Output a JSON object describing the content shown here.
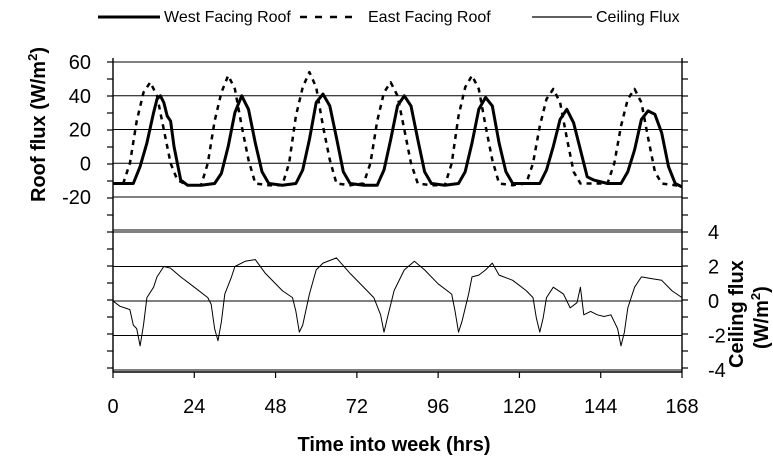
{
  "chart_data": {
    "type": "line",
    "xlabel": "Time into week (hrs)",
    "x_ticks": [
      0,
      24,
      48,
      72,
      96,
      120,
      144,
      168
    ],
    "xlim": [
      0,
      168
    ],
    "grid": true,
    "legend_position": "top",
    "top_panel": {
      "ylabel_main": "Roof flux (W/m",
      "ylabel_sup": "2",
      "ylabel_close": ")",
      "y_ticks": [
        60,
        40,
        20,
        0,
        -20
      ],
      "ylim": [
        -20,
        60
      ],
      "series": [
        {
          "name": "West Facing Roof",
          "style": "solid-thick",
          "points": [
            [
              0,
              -12
            ],
            [
              4,
              -12
            ],
            [
              6,
              -12
            ],
            [
              8,
              -2
            ],
            [
              10,
              12
            ],
            [
              12,
              30
            ],
            [
              13,
              38
            ],
            [
              14,
              40
            ],
            [
              15,
              36
            ],
            [
              16,
              28
            ],
            [
              17,
              25
            ],
            [
              18,
              10
            ],
            [
              20,
              -10
            ],
            [
              22,
              -13
            ],
            [
              26,
              -13
            ],
            [
              30,
              -12
            ],
            [
              32,
              -6
            ],
            [
              34,
              10
            ],
            [
              36,
              30
            ],
            [
              38,
              40
            ],
            [
              40,
              32
            ],
            [
              42,
              12
            ],
            [
              44,
              -5
            ],
            [
              46,
              -12
            ],
            [
              50,
              -13
            ],
            [
              54,
              -12
            ],
            [
              56,
              -4
            ],
            [
              58,
              14
            ],
            [
              60,
              36
            ],
            [
              62,
              41
            ],
            [
              64,
              34
            ],
            [
              66,
              15
            ],
            [
              68,
              -5
            ],
            [
              70,
              -12
            ],
            [
              74,
              -13
            ],
            [
              78,
              -13
            ],
            [
              80,
              -4
            ],
            [
              82,
              14
            ],
            [
              84,
              34
            ],
            [
              86,
              40
            ],
            [
              88,
              34
            ],
            [
              90,
              14
            ],
            [
              92,
              -5
            ],
            [
              94,
              -12
            ],
            [
              98,
              -13
            ],
            [
              102,
              -12
            ],
            [
              104,
              -5
            ],
            [
              106,
              12
            ],
            [
              108,
              32
            ],
            [
              110,
              39
            ],
            [
              112,
              34
            ],
            [
              114,
              12
            ],
            [
              116,
              -5
            ],
            [
              118,
              -12
            ],
            [
              122,
              -12
            ],
            [
              126,
              -12
            ],
            [
              128,
              -4
            ],
            [
              130,
              10
            ],
            [
              132,
              26
            ],
            [
              134,
              32
            ],
            [
              136,
              24
            ],
            [
              138,
              8
            ],
            [
              140,
              -8
            ],
            [
              142,
              -10
            ],
            [
              146,
              -12
            ],
            [
              150,
              -12
            ],
            [
              152,
              -5
            ],
            [
              154,
              8
            ],
            [
              156,
              26
            ],
            [
              158,
              31
            ],
            [
              160,
              29
            ],
            [
              162,
              18
            ],
            [
              164,
              -2
            ],
            [
              166,
              -12
            ],
            [
              168,
              -14
            ]
          ]
        },
        {
          "name": "East Facing Roof",
          "style": "dashed",
          "points": [
            [
              0,
              -12
            ],
            [
              3,
              -12
            ],
            [
              5,
              0
            ],
            [
              7,
              25
            ],
            [
              9,
              42
            ],
            [
              11,
              48
            ],
            [
              13,
              40
            ],
            [
              15,
              20
            ],
            [
              17,
              0
            ],
            [
              19,
              -10
            ],
            [
              22,
              -13
            ],
            [
              26,
              -13
            ],
            [
              28,
              0
            ],
            [
              30,
              25
            ],
            [
              32,
              42
            ],
            [
              34,
              52
            ],
            [
              36,
              44
            ],
            [
              38,
              22
            ],
            [
              40,
              2
            ],
            [
              42,
              -12
            ],
            [
              46,
              -13
            ],
            [
              50,
              -13
            ],
            [
              52,
              0
            ],
            [
              54,
              28
            ],
            [
              56,
              45
            ],
            [
              58,
              54
            ],
            [
              60,
              45
            ],
            [
              62,
              22
            ],
            [
              64,
              2
            ],
            [
              66,
              -12
            ],
            [
              70,
              -13
            ],
            [
              74,
              -12
            ],
            [
              76,
              0
            ],
            [
              78,
              25
            ],
            [
              80,
              42
            ],
            [
              82,
              48
            ],
            [
              84,
              40
            ],
            [
              86,
              20
            ],
            [
              88,
              0
            ],
            [
              90,
              -12
            ],
            [
              94,
              -13
            ],
            [
              98,
              -13
            ],
            [
              100,
              0
            ],
            [
              102,
              28
            ],
            [
              104,
              45
            ],
            [
              106,
              52
            ],
            [
              108,
              44
            ],
            [
              110,
              22
            ],
            [
              112,
              2
            ],
            [
              114,
              -12
            ],
            [
              118,
              -13
            ],
            [
              122,
              -12
            ],
            [
              124,
              0
            ],
            [
              126,
              22
            ],
            [
              128,
              38
            ],
            [
              130,
              44
            ],
            [
              132,
              36
            ],
            [
              134,
              15
            ],
            [
              136,
              -5
            ],
            [
              138,
              -12
            ],
            [
              142,
              -12
            ],
            [
              146,
              -12
            ],
            [
              148,
              0
            ],
            [
              150,
              22
            ],
            [
              152,
              38
            ],
            [
              154,
              44
            ],
            [
              156,
              36
            ],
            [
              158,
              15
            ],
            [
              160,
              -5
            ],
            [
              162,
              -12
            ],
            [
              166,
              -13
            ],
            [
              168,
              -14
            ]
          ]
        }
      ]
    },
    "bottom_panel": {
      "ylabel_main": "Ceiling flux",
      "ylabel_second": "(W/m",
      "ylabel_sup": "2",
      "ylabel_close": ")",
      "y_ticks": [
        4,
        2,
        0,
        -2,
        -4
      ],
      "ylim": [
        -4,
        4
      ],
      "series": [
        {
          "name": "Ceiling Flux",
          "style": "solid-thin",
          "points": [
            [
              0,
              0
            ],
            [
              2,
              -0.3
            ],
            [
              5,
              -0.5
            ],
            [
              6,
              -1.4
            ],
            [
              7,
              -1.6
            ],
            [
              8,
              -2.6
            ],
            [
              9,
              -1.4
            ],
            [
              10,
              0.2
            ],
            [
              12,
              0.8
            ],
            [
              13,
              1.4
            ],
            [
              15,
              2.0
            ],
            [
              17,
              1.9
            ],
            [
              20,
              1.4
            ],
            [
              24,
              0.8
            ],
            [
              28,
              0.2
            ],
            [
              29,
              -0.2
            ],
            [
              30,
              -1.6
            ],
            [
              31,
              -2.3
            ],
            [
              32,
              -1.2
            ],
            [
              33,
              0.4
            ],
            [
              35,
              1.4
            ],
            [
              36,
              2.0
            ],
            [
              39,
              2.3
            ],
            [
              42,
              2.4
            ],
            [
              45,
              1.6
            ],
            [
              50,
              0.6
            ],
            [
              53,
              0.2
            ],
            [
              54,
              -0.6
            ],
            [
              55,
              -1.8
            ],
            [
              56,
              -1.4
            ],
            [
              58,
              0.4
            ],
            [
              60,
              1.8
            ],
            [
              62,
              2.2
            ],
            [
              66,
              2.5
            ],
            [
              70,
              1.6
            ],
            [
              75,
              0.6
            ],
            [
              77,
              0.2
            ],
            [
              79,
              -0.8
            ],
            [
              80,
              -1.8
            ],
            [
              81,
              -1.0
            ],
            [
              83,
              0.6
            ],
            [
              86,
              1.8
            ],
            [
              89,
              2.3
            ],
            [
              92,
              1.8
            ],
            [
              96,
              1.0
            ],
            [
              100,
              0.4
            ],
            [
              101,
              -0.6
            ],
            [
              102,
              -1.8
            ],
            [
              103,
              -1.2
            ],
            [
              105,
              0.4
            ],
            [
              106,
              1.4
            ],
            [
              108,
              1.5
            ],
            [
              110,
              1.8
            ],
            [
              112,
              2.2
            ],
            [
              114,
              1.5
            ],
            [
              118,
              1.2
            ],
            [
              122,
              0.6
            ],
            [
              124,
              0.2
            ],
            [
              125,
              -1.0
            ],
            [
              126,
              -1.8
            ],
            [
              127,
              -1.0
            ],
            [
              128,
              0.2
            ],
            [
              130,
              0.8
            ],
            [
              133,
              0.4
            ],
            [
              135,
              -0.4
            ],
            [
              137,
              -0.1
            ],
            [
              138,
              0.8
            ],
            [
              139,
              -0.8
            ],
            [
              141,
              -0.6
            ],
            [
              143,
              -0.8
            ],
            [
              145,
              -0.9
            ],
            [
              147,
              -0.8
            ],
            [
              149,
              -1.6
            ],
            [
              150,
              -2.6
            ],
            [
              151,
              -1.8
            ],
            [
              152,
              -0.4
            ],
            [
              154,
              0.8
            ],
            [
              156,
              1.4
            ],
            [
              159,
              1.3
            ],
            [
              162,
              1.2
            ],
            [
              165,
              0.6
            ],
            [
              168,
              0.2
            ]
          ]
        }
      ]
    }
  }
}
